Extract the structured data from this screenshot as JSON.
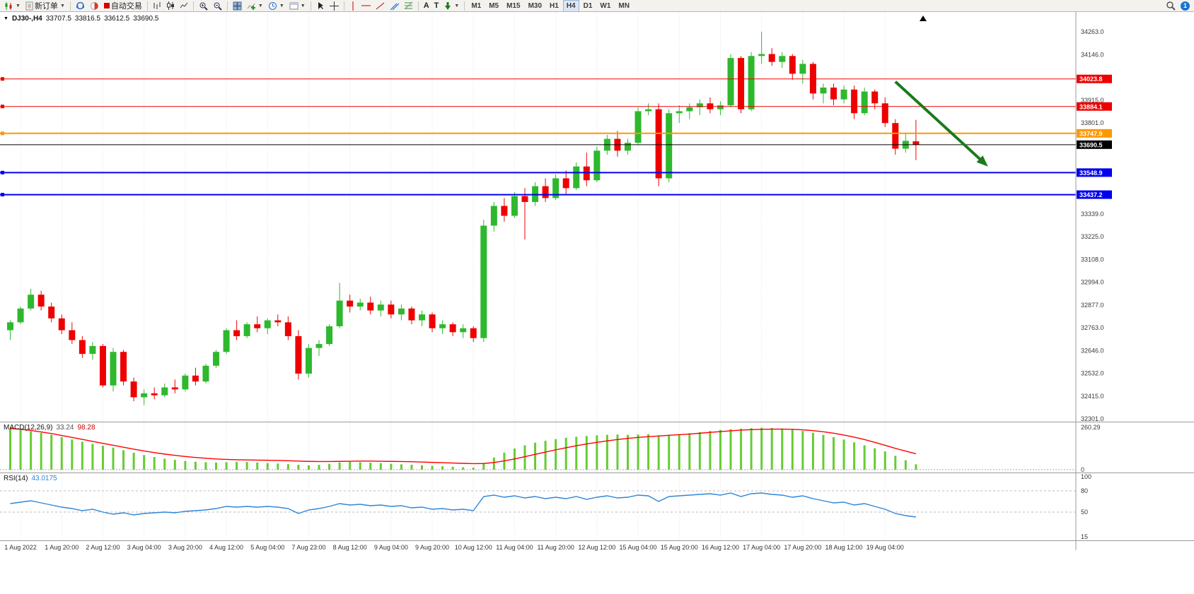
{
  "toolbar": {
    "new_order_label": "新订单",
    "auto_trading_label": "自动交易",
    "timeframes": [
      "M1",
      "M5",
      "M15",
      "M30",
      "H1",
      "H4",
      "D1",
      "W1",
      "MN"
    ],
    "active_timeframe": "H4",
    "notification_count": "1"
  },
  "header": {
    "symbol": "DJ30-,H4",
    "open": "33707.5",
    "high": "33816.5",
    "low": "33612.5",
    "close": "33690.5"
  },
  "indicators": {
    "macd_name": "MACD(12,26,9)",
    "macd_main": "33.24",
    "macd_signal": "98.28",
    "rsi_name": "RSI(14)",
    "rsi_value": "43.0175"
  },
  "colors": {
    "bull": "#2eb82e",
    "bear": "#ee0000",
    "resistance": "#ee0000",
    "pivot": "#ff9800",
    "support": "#0000ee",
    "current": "#000000",
    "macd_hist": "#66cc33",
    "macd_signal": "#ff0000",
    "rsi_line": "#2e86d7",
    "arrow": "#1b7a1b",
    "grid": "#e3e3e3"
  },
  "chart_data": [
    {
      "type": "candlestick",
      "symbol": "DJ30-",
      "timeframe": "H4",
      "current_ohlc": {
        "open": 33707.5,
        "high": 33816.5,
        "low": 33612.5,
        "close": 33690.5
      },
      "ylim": [
        32280,
        34370
      ],
      "price_axis_labels": [
        "34263.0",
        "34146.0",
        "33915.0",
        "33801.0",
        "33339.0",
        "33225.0",
        "33108.0",
        "32994.0",
        "32877.0",
        "32763.0",
        "32646.0",
        "32532.0",
        "32415.0",
        "32301.0"
      ],
      "price_lines": [
        {
          "price": 34023.8,
          "label": "34023.8",
          "color": "#ee0000",
          "width": 1,
          "name": "resistance-line-1",
          "handle": true
        },
        {
          "price": 33884.1,
          "label": "33884.1",
          "color": "#ee0000",
          "width": 1,
          "name": "resistance-line-2",
          "handle": true
        },
        {
          "price": 33747.9,
          "label": "33747.9",
          "color": "#ff9800",
          "width": 2,
          "name": "pivot-line",
          "handle": true
        },
        {
          "price": 33690.5,
          "label": "33690.5",
          "color": "#000000",
          "width": 1,
          "name": "current-price-line",
          "handle": false
        },
        {
          "price": 33548.9,
          "label": "33548.9",
          "color": "#0000ee",
          "width": 2,
          "name": "support-line-1",
          "handle": true
        },
        {
          "price": 33437.2,
          "label": "33437.2",
          "color": "#0000ee",
          "width": 2,
          "name": "support-line-2",
          "handle": true
        }
      ],
      "time_labels": [
        {
          "text": "1 Aug 2022",
          "i": 1
        },
        {
          "text": "1 Aug 20:00",
          "i": 5
        },
        {
          "text": "2 Aug 12:00",
          "i": 9
        },
        {
          "text": "3 Aug 04:00",
          "i": 13
        },
        {
          "text": "3 Aug 20:00",
          "i": 17
        },
        {
          "text": "4 Aug 12:00",
          "i": 21
        },
        {
          "text": "5 Aug 04:00",
          "i": 25
        },
        {
          "text": "7 Aug 23:00",
          "i": 29
        },
        {
          "text": "8 Aug 12:00",
          "i": 33
        },
        {
          "text": "9 Aug 04:00",
          "i": 37
        },
        {
          "text": "9 Aug 20:00",
          "i": 41
        },
        {
          "text": "10 Aug 12:00",
          "i": 45
        },
        {
          "text": "11 Aug 04:00",
          "i": 49
        },
        {
          "text": "11 Aug 20:00",
          "i": 53
        },
        {
          "text": "12 Aug 12:00",
          "i": 57
        },
        {
          "text": "15 Aug 04:00",
          "i": 61
        },
        {
          "text": "15 Aug 20:00",
          "i": 65
        },
        {
          "text": "16 Aug 12:00",
          "i": 69
        },
        {
          "text": "17 Aug 04:00",
          "i": 73
        },
        {
          "text": "17 Aug 20:00",
          "i": 77
        },
        {
          "text": "18 Aug 12:00",
          "i": 81
        },
        {
          "text": "19 Aug 04:00",
          "i": 85
        }
      ],
      "candles": [
        [
          32750,
          32800,
          32700,
          32790
        ],
        [
          32790,
          32870,
          32780,
          32860
        ],
        [
          32860,
          32960,
          32850,
          32930
        ],
        [
          32930,
          32950,
          32850,
          32870
        ],
        [
          32870,
          32890,
          32790,
          32810
        ],
        [
          32810,
          32830,
          32730,
          32750
        ],
        [
          32750,
          32790,
          32680,
          32700
        ],
        [
          32700,
          32720,
          32610,
          32630
        ],
        [
          32630,
          32690,
          32600,
          32670
        ],
        [
          32670,
          32680,
          32460,
          32470
        ],
        [
          32470,
          32660,
          32440,
          32640
        ],
        [
          32640,
          32650,
          32470,
          32490
        ],
        [
          32490,
          32510,
          32390,
          32410
        ],
        [
          32410,
          32450,
          32370,
          32430
        ],
        [
          32430,
          32460,
          32400,
          32420
        ],
        [
          32420,
          32480,
          32410,
          32460
        ],
        [
          32460,
          32500,
          32430,
          32450
        ],
        [
          32450,
          32530,
          32440,
          32520
        ],
        [
          32520,
          32560,
          32470,
          32490
        ],
        [
          32490,
          32580,
          32480,
          32570
        ],
        [
          32570,
          32650,
          32560,
          32640
        ],
        [
          32640,
          32760,
          32630,
          32750
        ],
        [
          32750,
          32800,
          32700,
          32720
        ],
        [
          32720,
          32790,
          32710,
          32780
        ],
        [
          32780,
          32820,
          32740,
          32760
        ],
        [
          32760,
          32810,
          32730,
          32800
        ],
        [
          32800,
          32830,
          32770,
          32790
        ],
        [
          32790,
          32820,
          32700,
          32720
        ],
        [
          32720,
          32750,
          32500,
          32530
        ],
        [
          32530,
          32680,
          32510,
          32660
        ],
        [
          32660,
          32700,
          32620,
          32680
        ],
        [
          32680,
          32780,
          32670,
          32770
        ],
        [
          32770,
          32990,
          32760,
          32900
        ],
        [
          32900,
          32930,
          32840,
          32870
        ],
        [
          32870,
          32910,
          32850,
          32890
        ],
        [
          32890,
          32920,
          32830,
          32850
        ],
        [
          32850,
          32900,
          32820,
          32880
        ],
        [
          32880,
          32900,
          32810,
          32830
        ],
        [
          32830,
          32880,
          32800,
          32860
        ],
        [
          32860,
          32870,
          32780,
          32800
        ],
        [
          32800,
          32850,
          32770,
          32830
        ],
        [
          32830,
          32840,
          32740,
          32760
        ],
        [
          32760,
          32800,
          32730,
          32780
        ],
        [
          32780,
          32790,
          32720,
          32740
        ],
        [
          32740,
          32780,
          32710,
          32760
        ],
        [
          32760,
          32770,
          32690,
          32710
        ],
        [
          32710,
          33310,
          32690,
          33280
        ],
        [
          33280,
          33400,
          33250,
          33380
        ],
        [
          33380,
          33420,
          33300,
          33330
        ],
        [
          33330,
          33450,
          33320,
          33430
        ],
        [
          33430,
          33470,
          33210,
          33400
        ],
        [
          33400,
          33500,
          33380,
          33480
        ],
        [
          33480,
          33520,
          33400,
          33420
        ],
        [
          33420,
          33540,
          33410,
          33520
        ],
        [
          33520,
          33560,
          33440,
          33470
        ],
        [
          33470,
          33600,
          33460,
          33580
        ],
        [
          33580,
          33650,
          33480,
          33510
        ],
        [
          33510,
          33680,
          33500,
          33660
        ],
        [
          33660,
          33740,
          33640,
          33720
        ],
        [
          33720,
          33760,
          33630,
          33660
        ],
        [
          33660,
          33720,
          33640,
          33700
        ],
        [
          33700,
          33880,
          33690,
          33860
        ],
        [
          33860,
          33900,
          33840,
          33870
        ],
        [
          33870,
          33900,
          33480,
          33520
        ],
        [
          33520,
          33870,
          33500,
          33850
        ],
        [
          33850,
          33890,
          33800,
          33860
        ],
        [
          33860,
          33900,
          33820,
          33880
        ],
        [
          33880,
          33920,
          33840,
          33900
        ],
        [
          33900,
          33930,
          33850,
          33870
        ],
        [
          33870,
          33910,
          33840,
          33890
        ],
        [
          33890,
          34150,
          33880,
          34130
        ],
        [
          34130,
          34140,
          33850,
          33870
        ],
        [
          33870,
          34160,
          33860,
          34140
        ],
        [
          34140,
          34263,
          34100,
          34150
        ],
        [
          34150,
          34180,
          34090,
          34110
        ],
        [
          34110,
          34160,
          34080,
          34140
        ],
        [
          34140,
          34150,
          34020,
          34050
        ],
        [
          34050,
          34120,
          34000,
          34100
        ],
        [
          34100,
          34110,
          33920,
          33950
        ],
        [
          33950,
          34000,
          33900,
          33980
        ],
        [
          33980,
          34000,
          33890,
          33920
        ],
        [
          33920,
          33990,
          33900,
          33970
        ],
        [
          33970,
          33990,
          33820,
          33850
        ],
        [
          33850,
          33980,
          33840,
          33960
        ],
        [
          33960,
          33970,
          33870,
          33900
        ],
        [
          33900,
          33930,
          33780,
          33800
        ],
        [
          33800,
          33820,
          33640,
          33670
        ],
        [
          33670,
          33750,
          33650,
          33710
        ],
        [
          33707.5,
          33816.5,
          33612.5,
          33690.5
        ]
      ],
      "arrow": {
        "from_candle": 86,
        "from_price": 34010,
        "to_candle": 95,
        "to_price": 33580
      }
    },
    {
      "type": "bar",
      "name": "MACD(12,26,9)",
      "current_main": 33.24,
      "current_signal": 98.28,
      "ylim": [
        0,
        260.29
      ],
      "axis_labels": [
        "260.29",
        "0"
      ],
      "histogram": [
        250,
        244,
        236,
        226,
        214,
        200,
        186,
        172,
        159,
        147,
        136,
        120,
        104,
        90,
        78,
        68,
        60,
        54,
        49,
        46,
        44,
        46,
        48,
        47,
        44,
        41,
        38,
        34,
        30,
        27,
        30,
        36,
        44,
        48,
        46,
        43,
        40,
        36,
        33,
        30,
        27,
        24,
        21,
        18,
        15,
        13,
        40,
        75,
        105,
        130,
        150,
        166,
        178,
        188,
        196,
        202,
        207,
        211,
        214,
        216,
        214,
        216,
        218,
        210,
        214,
        218,
        224,
        231,
        238,
        244,
        249,
        252,
        255,
        257,
        256,
        253,
        247,
        238,
        227,
        214,
        200,
        185,
        168,
        150,
        131,
        112,
        85,
        58,
        33
      ],
      "signal": [
        253,
        248,
        241,
        232,
        222,
        210,
        198,
        186,
        174,
        162,
        150,
        138,
        126,
        115,
        105,
        96,
        88,
        81,
        75,
        70,
        66,
        63,
        61,
        60,
        59,
        58,
        57,
        55,
        53,
        51,
        50,
        50,
        51,
        52,
        53,
        53,
        52,
        51,
        50,
        49,
        47,
        45,
        43,
        41,
        39,
        37,
        38,
        44,
        54,
        66,
        80,
        94,
        108,
        122,
        135,
        147,
        158,
        168,
        177,
        185,
        192,
        198,
        203,
        207,
        211,
        215,
        219,
        224,
        229,
        234,
        239,
        243,
        246,
        248,
        249,
        249,
        248,
        245,
        240,
        233,
        224,
        213,
        200,
        185,
        168,
        150,
        131,
        114,
        98
      ]
    },
    {
      "type": "line",
      "name": "RSI(14)",
      "current_value": 43.0175,
      "ylim": [
        10,
        103
      ],
      "axis_labels": [
        "100",
        "80",
        "50",
        "15"
      ],
      "axis_levels": [
        100,
        80,
        50,
        15
      ],
      "dashed_levels": [
        80,
        50
      ],
      "values": [
        62,
        64,
        66,
        63,
        60,
        57,
        55,
        52,
        54,
        50,
        47,
        49,
        46,
        48,
        49,
        50,
        49,
        51,
        52,
        53,
        55,
        58,
        57,
        58,
        57,
        58,
        57,
        55,
        48,
        53,
        55,
        58,
        62,
        60,
        61,
        59,
        60,
        58,
        59,
        56,
        57,
        54,
        55,
        53,
        54,
        52,
        72,
        74,
        71,
        73,
        70,
        72,
        69,
        71,
        69,
        72,
        68,
        71,
        73,
        70,
        71,
        74,
        73,
        65,
        72,
        73,
        74,
        75,
        76,
        74,
        77,
        72,
        76,
        77,
        75,
        74,
        71,
        73,
        69,
        66,
        63,
        64,
        60,
        62,
        58,
        54,
        48,
        45,
        43
      ]
    }
  ]
}
